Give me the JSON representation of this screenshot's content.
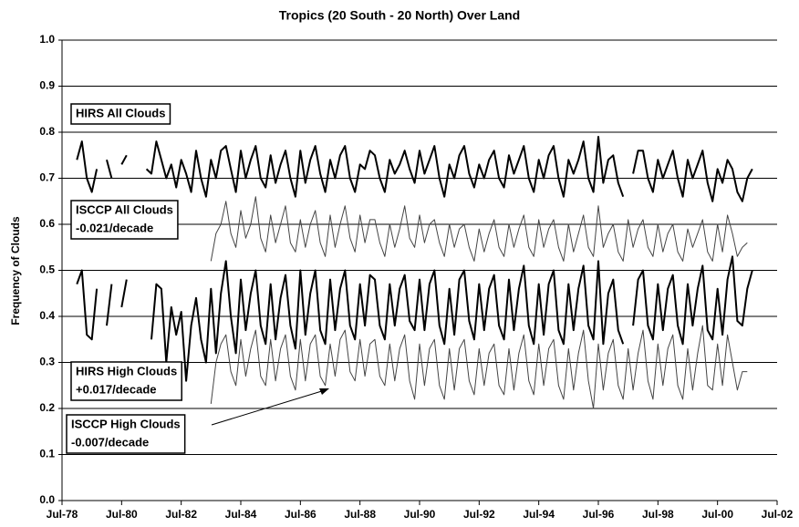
{
  "chart_data": {
    "type": "line",
    "title": "Tropics (20 South - 20 North)  Over Land",
    "y_label": "Frequency of Clouds",
    "grid": true,
    "xlim": [
      "1978-07",
      "2002-07"
    ],
    "xticks": [
      {
        "value": "1978-07",
        "label": "Jul-78"
      },
      {
        "value": "1980-07",
        "label": "Jul-80"
      },
      {
        "value": "1982-07",
        "label": "Jul-82"
      },
      {
        "value": "1984-07",
        "label": "Jul-84"
      },
      {
        "value": "1986-07",
        "label": "Jul-86"
      },
      {
        "value": "1988-07",
        "label": "Jul-88"
      },
      {
        "value": "1990-07",
        "label": "Jul-90"
      },
      {
        "value": "1992-07",
        "label": "Jul-92"
      },
      {
        "value": "1994-07",
        "label": "Jul-94"
      },
      {
        "value": "1996-07",
        "label": "Jul-96"
      },
      {
        "value": "1998-07",
        "label": "Jul-98"
      },
      {
        "value": "2000-07",
        "label": "Jul-00"
      },
      {
        "value": "2002-07",
        "label": "Jul-02"
      }
    ],
    "ylim": [
      0,
      1
    ],
    "yticks": [
      {
        "value": 0,
        "label": "0.0"
      },
      0.1,
      0.2,
      0.3,
      0.4,
      0.5,
      0.6,
      0.7,
      0.8,
      0.9,
      {
        "value": 1,
        "label": "1.0"
      }
    ],
    "annotations": [
      {
        "lines": [
          "HIRS All Clouds"
        ]
      },
      {
        "lines": [
          "ISCCP All Clouds",
          "-0.021/decade"
        ]
      },
      {
        "lines": [
          "HIRS High Clouds",
          "+0.017/decade"
        ]
      },
      {
        "lines": [
          "ISCCP High Clouds",
          "-0.007/decade"
        ]
      }
    ],
    "x": [
      "1979-01",
      "1979-03",
      "1979-05",
      "1979-07",
      "1979-09",
      "1979-11",
      "1980-01",
      "1980-03",
      "1980-05",
      "1980-07",
      "1980-09",
      "1980-11",
      "1981-01",
      "1981-03",
      "1981-05",
      "1981-07",
      "1981-09",
      "1981-11",
      "1982-01",
      "1982-03",
      "1982-05",
      "1982-07",
      "1982-09",
      "1982-11",
      "1983-01",
      "1983-03",
      "1983-05",
      "1983-07",
      "1983-09",
      "1983-11",
      "1984-01",
      "1984-03",
      "1984-05",
      "1984-07",
      "1984-09",
      "1984-11",
      "1985-01",
      "1985-03",
      "1985-05",
      "1985-07",
      "1985-09",
      "1985-11",
      "1986-01",
      "1986-03",
      "1986-05",
      "1986-07",
      "1986-09",
      "1986-11",
      "1987-01",
      "1987-03",
      "1987-05",
      "1987-07",
      "1987-09",
      "1987-11",
      "1988-01",
      "1988-03",
      "1988-05",
      "1988-07",
      "1988-09",
      "1988-11",
      "1989-01",
      "1989-03",
      "1989-05",
      "1989-07",
      "1989-09",
      "1989-11",
      "1990-01",
      "1990-03",
      "1990-05",
      "1990-07",
      "1990-09",
      "1990-11",
      "1991-01",
      "1991-03",
      "1991-05",
      "1991-07",
      "1991-09",
      "1991-11",
      "1992-01",
      "1992-03",
      "1992-05",
      "1992-07",
      "1992-09",
      "1992-11",
      "1993-01",
      "1993-03",
      "1993-05",
      "1993-07",
      "1993-09",
      "1993-11",
      "1994-01",
      "1994-03",
      "1994-05",
      "1994-07",
      "1994-09",
      "1994-11",
      "1995-01",
      "1995-03",
      "1995-05",
      "1995-07",
      "1995-09",
      "1995-11",
      "1996-01",
      "1996-03",
      "1996-05",
      "1996-07",
      "1996-09",
      "1996-11",
      "1997-01",
      "1997-03",
      "1997-05",
      "1997-07",
      "1997-09",
      "1997-11",
      "1998-01",
      "1998-03",
      "1998-05",
      "1998-07",
      "1998-09",
      "1998-11",
      "1999-01",
      "1999-03",
      "1999-05",
      "1999-07",
      "1999-09",
      "1999-11",
      "2000-01",
      "2000-03",
      "2000-05",
      "2000-07",
      "2000-09",
      "2000-11",
      "2001-01",
      "2001-03",
      "2001-05",
      "2001-07",
      "2001-09"
    ],
    "series": [
      {
        "name": "HIRS All Clouds",
        "color": "#000000",
        "values": [
          0.74,
          0.78,
          0.7,
          0.67,
          0.72,
          null,
          0.74,
          0.7,
          null,
          0.73,
          0.75,
          null,
          null,
          null,
          0.72,
          0.71,
          0.78,
          0.74,
          0.7,
          0.73,
          0.68,
          0.74,
          0.71,
          0.67,
          0.76,
          0.7,
          0.66,
          0.74,
          0.7,
          0.76,
          0.77,
          0.72,
          0.67,
          0.76,
          0.7,
          0.74,
          0.77,
          0.7,
          0.68,
          0.75,
          0.69,
          0.73,
          0.76,
          0.7,
          0.66,
          0.76,
          0.69,
          0.74,
          0.77,
          0.71,
          0.67,
          0.74,
          0.7,
          0.75,
          0.77,
          0.7,
          0.67,
          0.73,
          0.72,
          0.76,
          0.75,
          0.7,
          0.67,
          0.74,
          0.71,
          0.73,
          0.76,
          0.72,
          0.69,
          0.76,
          0.71,
          0.74,
          0.77,
          0.7,
          0.66,
          0.73,
          0.7,
          0.75,
          0.77,
          0.71,
          0.68,
          0.73,
          0.7,
          0.74,
          0.76,
          0.7,
          0.68,
          0.75,
          0.71,
          0.74,
          0.77,
          0.7,
          0.67,
          0.74,
          0.7,
          0.75,
          0.77,
          0.7,
          0.66,
          0.74,
          0.71,
          0.74,
          0.78,
          0.7,
          0.67,
          0.79,
          0.69,
          0.74,
          0.75,
          0.69,
          0.66,
          null,
          0.71,
          0.76,
          0.76,
          0.7,
          0.67,
          0.74,
          0.7,
          0.73,
          0.76,
          0.7,
          0.66,
          0.74,
          0.7,
          0.73,
          0.76,
          0.69,
          0.65,
          0.72,
          0.69,
          0.74,
          0.72,
          0.67,
          0.65,
          0.7,
          0.72
        ]
      },
      {
        "name": "ISCCP All Clouds",
        "color": "#444444",
        "values": [
          null,
          null,
          null,
          null,
          null,
          null,
          null,
          null,
          null,
          null,
          null,
          null,
          null,
          null,
          null,
          null,
          null,
          null,
          null,
          null,
          null,
          null,
          null,
          null,
          null,
          null,
          null,
          0.52,
          0.58,
          0.6,
          0.65,
          0.58,
          0.55,
          0.63,
          0.57,
          0.6,
          0.66,
          0.57,
          0.54,
          0.62,
          0.56,
          0.6,
          0.64,
          0.56,
          0.54,
          0.61,
          0.55,
          0.6,
          0.63,
          0.56,
          0.53,
          0.62,
          0.55,
          0.6,
          0.64,
          0.57,
          0.54,
          0.62,
          0.56,
          0.61,
          0.61,
          0.56,
          0.53,
          0.6,
          0.55,
          0.59,
          0.64,
          0.57,
          0.55,
          0.62,
          0.56,
          0.6,
          0.61,
          0.56,
          0.53,
          0.6,
          0.55,
          0.59,
          0.6,
          0.55,
          0.52,
          0.59,
          0.54,
          0.58,
          0.61,
          0.55,
          0.53,
          0.6,
          0.55,
          0.59,
          0.62,
          0.55,
          0.53,
          0.61,
          0.55,
          0.59,
          0.61,
          0.55,
          0.52,
          0.6,
          0.54,
          0.58,
          0.62,
          0.55,
          0.53,
          0.64,
          0.55,
          0.58,
          0.6,
          0.54,
          0.52,
          0.61,
          0.55,
          0.59,
          0.61,
          0.55,
          0.53,
          0.6,
          0.54,
          0.58,
          0.6,
          0.54,
          0.52,
          0.59,
          0.55,
          0.58,
          0.61,
          0.54,
          0.52,
          0.6,
          0.54,
          0.62,
          0.58,
          0.53,
          0.55,
          0.56,
          null
        ]
      },
      {
        "name": "HIRS High Clouds",
        "color": "#000000",
        "values": [
          0.47,
          0.5,
          0.36,
          0.35,
          0.46,
          null,
          0.38,
          0.47,
          null,
          0.42,
          0.48,
          null,
          null,
          null,
          null,
          0.35,
          0.47,
          0.46,
          0.3,
          0.42,
          0.36,
          0.41,
          0.26,
          0.38,
          0.44,
          0.35,
          0.3,
          0.46,
          0.32,
          0.45,
          0.52,
          0.4,
          0.32,
          0.48,
          0.37,
          0.45,
          0.5,
          0.38,
          0.34,
          0.47,
          0.35,
          0.44,
          0.49,
          0.38,
          0.33,
          0.5,
          0.36,
          0.45,
          0.5,
          0.37,
          0.34,
          0.48,
          0.37,
          0.46,
          0.5,
          0.38,
          0.35,
          0.47,
          0.38,
          0.49,
          0.48,
          0.38,
          0.35,
          0.47,
          0.38,
          0.46,
          0.49,
          0.39,
          0.37,
          0.48,
          0.37,
          0.47,
          0.5,
          0.38,
          0.34,
          0.46,
          0.36,
          0.48,
          0.5,
          0.39,
          0.35,
          0.47,
          0.37,
          0.46,
          0.49,
          0.38,
          0.35,
          0.48,
          0.37,
          0.46,
          0.51,
          0.38,
          0.34,
          0.47,
          0.36,
          0.47,
          0.5,
          0.37,
          0.34,
          0.47,
          0.37,
          0.46,
          0.51,
          0.38,
          0.35,
          0.52,
          0.34,
          0.45,
          0.48,
          0.37,
          0.34,
          null,
          0.38,
          0.48,
          0.5,
          0.38,
          0.35,
          0.47,
          0.37,
          0.46,
          0.49,
          0.38,
          0.34,
          0.47,
          0.38,
          0.46,
          0.51,
          0.37,
          0.35,
          0.46,
          0.36,
          0.48,
          0.53,
          0.39,
          0.38,
          0.46,
          0.5
        ]
      },
      {
        "name": "ISCCP High Clouds",
        "color": "#444444",
        "values": [
          null,
          null,
          null,
          null,
          null,
          null,
          null,
          null,
          null,
          null,
          null,
          null,
          null,
          null,
          null,
          null,
          null,
          null,
          null,
          null,
          null,
          null,
          null,
          null,
          null,
          null,
          null,
          0.21,
          0.3,
          0.34,
          0.36,
          0.28,
          0.25,
          0.35,
          0.27,
          0.33,
          0.37,
          0.27,
          0.25,
          0.35,
          0.26,
          0.33,
          0.36,
          0.27,
          0.24,
          0.35,
          0.26,
          0.34,
          0.36,
          0.27,
          0.25,
          0.34,
          0.27,
          0.35,
          0.37,
          0.28,
          0.26,
          0.35,
          0.27,
          0.34,
          0.35,
          0.27,
          0.25,
          0.34,
          0.26,
          0.33,
          0.36,
          0.26,
          0.22,
          0.34,
          0.25,
          0.33,
          0.35,
          0.25,
          0.22,
          0.33,
          0.24,
          0.33,
          0.35,
          0.26,
          0.23,
          0.33,
          0.25,
          0.32,
          0.34,
          0.25,
          0.23,
          0.33,
          0.24,
          0.32,
          0.36,
          0.26,
          0.23,
          0.34,
          0.25,
          0.33,
          0.35,
          0.25,
          0.22,
          0.33,
          0.24,
          0.32,
          0.37,
          0.26,
          0.2,
          0.34,
          0.24,
          0.32,
          0.35,
          0.25,
          0.22,
          0.33,
          0.24,
          0.32,
          0.37,
          0.26,
          0.22,
          0.34,
          0.25,
          0.33,
          0.36,
          0.25,
          0.22,
          0.33,
          0.24,
          0.32,
          0.38,
          0.25,
          0.24,
          0.34,
          0.25,
          0.36,
          0.3,
          0.24,
          0.28,
          0.28,
          null
        ]
      }
    ]
  }
}
